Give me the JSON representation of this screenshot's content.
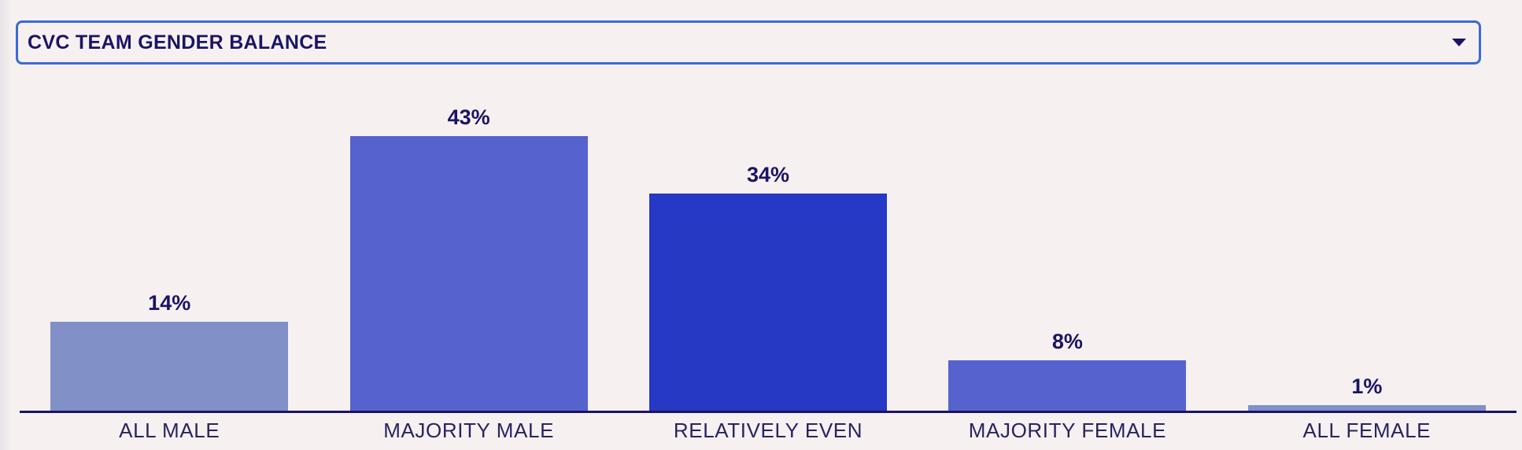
{
  "dropdown": {
    "value": "CVC TEAM GENDER BALANCE"
  },
  "chart_data": {
    "type": "bar",
    "title": "CVC TEAM GENDER BALANCE",
    "categories": [
      "ALL MALE",
      "MAJORITY MALE",
      "RELATIVELY EVEN",
      "MAJORITY FEMALE",
      "ALL FEMALE"
    ],
    "values": [
      14,
      43,
      34,
      8,
      1
    ],
    "value_labels": [
      "14%",
      "43%",
      "34%",
      "8%",
      "1%"
    ],
    "bar_colors": [
      "#8290c8",
      "#5662ce",
      "#2539c4",
      "#5662ce",
      "#8290c8"
    ],
    "xlabel": "",
    "ylabel": "",
    "ylim": [
      0,
      50
    ],
    "grid": false,
    "legend": "none"
  },
  "colors": {
    "background": "#f6f1f0",
    "text_dark": "#1b1464",
    "label_text": "#2b2263",
    "axis": "#1b1464",
    "dropdown_border": "#3a6bd8"
  }
}
